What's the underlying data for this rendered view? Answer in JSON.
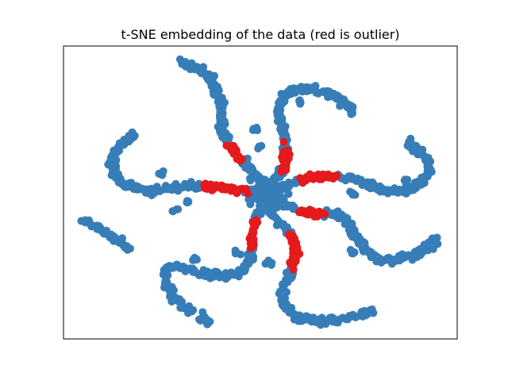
{
  "chart_data": {
    "type": "scatter",
    "title": "t-SNE embedding of the data (red is outlier)",
    "xlabel": "",
    "ylabel": "",
    "axis_ticks": "none",
    "grid": false,
    "colors": {
      "inlier": "#377eb8",
      "outlier": "#e41a1c"
    },
    "series": [
      {
        "role": "inlier",
        "shape": "six-armed spiral of points around a central cluster, plus one detached short arc at the far left",
        "spiral_arms": 6,
        "approx_points": 1800
      },
      {
        "role": "outlier",
        "shape": "short segments on the inner portion of each spiral arm",
        "approx_points": 190
      }
    ]
  }
}
